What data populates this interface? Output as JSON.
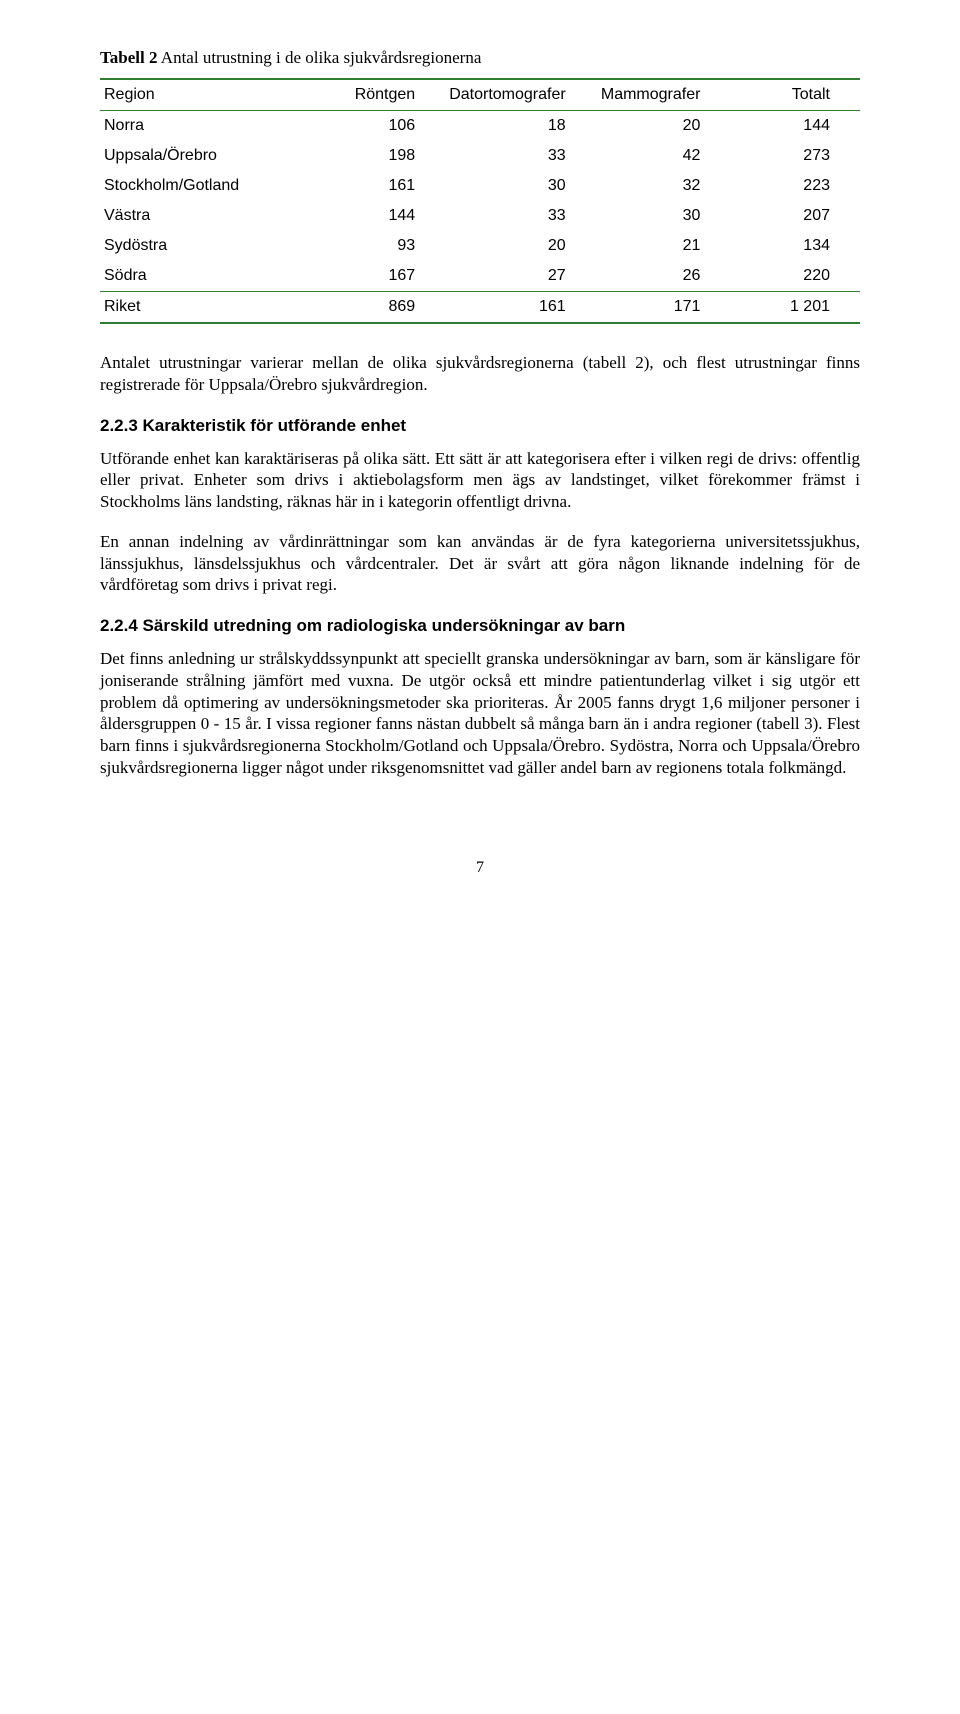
{
  "table": {
    "title_bold": "Tabell 2",
    "title_rest": " Antal utrustning i de olika sjukvårdsregionerna",
    "columns": [
      "Region",
      "Röntgen",
      "Datortomografer",
      "Mammografer",
      "Totalt"
    ],
    "rows": [
      {
        "region": "Norra",
        "rontgen": "106",
        "dt": "18",
        "mammo": "20",
        "total": "144"
      },
      {
        "region": "Uppsala/Örebro",
        "rontgen": "198",
        "dt": "33",
        "mammo": "42",
        "total": "273"
      },
      {
        "region": "Stockholm/Gotland",
        "rontgen": "161",
        "dt": "30",
        "mammo": "32",
        "total": "223"
      },
      {
        "region": "Västra",
        "rontgen": "144",
        "dt": "33",
        "mammo": "30",
        "total": "207"
      },
      {
        "region": "Sydöstra",
        "rontgen": "93",
        "dt": "20",
        "mammo": "21",
        "total": "134"
      },
      {
        "region": "Södra",
        "rontgen": "167",
        "dt": "27",
        "mammo": "26",
        "total": "220"
      }
    ],
    "total_row": {
      "region": "Riket",
      "rontgen": "869",
      "dt": "161",
      "mammo": "171",
      "total": "1 201"
    },
    "border_color": "#2e7d32",
    "font_family": "Arial",
    "font_size_pt": 12
  },
  "paragraphs": {
    "p1": "Antalet utrustningar varierar mellan de olika sjukvårdsregionerna (tabell 2), och flest utrustningar finns registrerade för Uppsala/Örebro sjukvårdregion.",
    "h223": "2.2.3 Karakteristik för utförande enhet",
    "p2": "Utförande enhet kan karaktäriseras på olika sätt. Ett sätt är att kategorisera efter i vilken regi de drivs: offentlig eller privat. Enheter som drivs i aktiebolagsform men ägs av landstinget, vilket förekommer främst i Stockholms läns landsting, räknas här in i kategorin offentligt drivna.",
    "p3": "En annan indelning av vårdinrättningar som kan användas är de fyra kategorierna universitetssjukhus, länssjukhus, länsdelssjukhus och vårdcentraler. Det är svårt att göra någon liknande indelning för de vårdföretag som drivs i privat regi.",
    "h224": "2.2.4 Särskild utredning om radiologiska undersökningar av barn",
    "p4": "Det finns anledning ur strålskyddssynpunkt att speciellt granska undersökningar av barn, som är känsligare för joniserande strålning jämfört med vuxna. De utgör också ett mindre patientunderlag vilket i sig utgör ett problem då optimering av undersökningsmetoder ska prioriteras. År 2005 fanns drygt 1,6 miljoner personer i åldersgruppen 0 - 15 år. I vissa regioner fanns nästan dubbelt så många barn än i andra regioner (tabell 3). Flest barn finns i sjukvårdsregionerna Stockholm/Gotland och Uppsala/Örebro. Sydöstra, Norra och Uppsala/Örebro sjukvårdsregionerna ligger något under riksgenomsnittet vad gäller andel barn av regionens totala folkmängd."
  },
  "page_number": "7",
  "colors": {
    "text": "#000000",
    "background": "#ffffff",
    "table_border": "#2e7d32"
  }
}
